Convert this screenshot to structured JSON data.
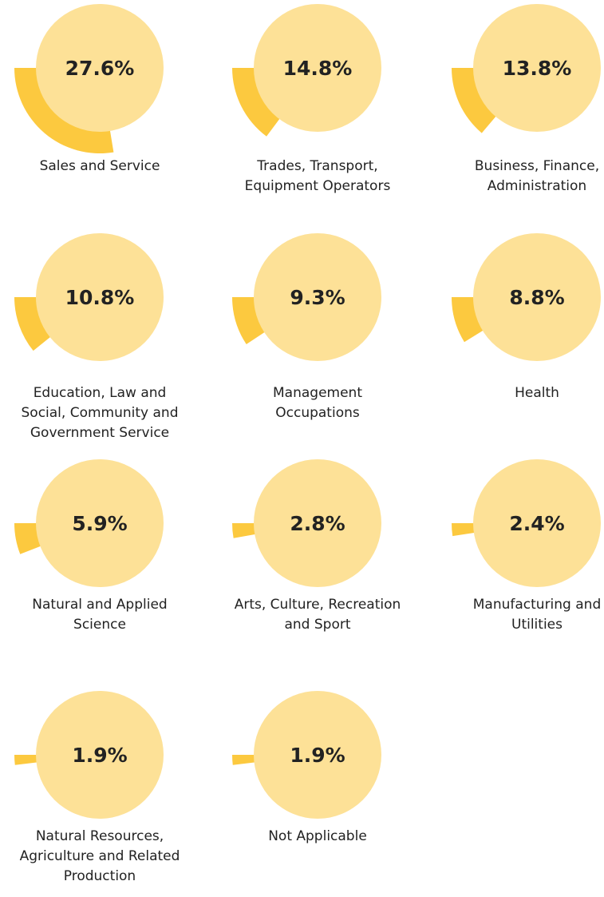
{
  "chart_data": [
    {
      "type": "pie",
      "categories": [
        "Sales and Service"
      ],
      "values": [
        27.6
      ],
      "value_labels": [
        "27.6%"
      ],
      "color": "#fcc93f"
    },
    {
      "type": "pie",
      "categories": [
        "Trades, Transport, Equipment Operators"
      ],
      "values": [
        14.8
      ],
      "value_labels": [
        "14.8%"
      ],
      "color": "#fcc93f"
    },
    {
      "type": "pie",
      "categories": [
        "Business, Finance, Administration"
      ],
      "values": [
        13.8
      ],
      "value_labels": [
        "13.8%"
      ],
      "color": "#fcc93f"
    },
    {
      "type": "pie",
      "categories": [
        "Education, Law and Social, Community and Government Service"
      ],
      "values": [
        10.8
      ],
      "value_labels": [
        "10.8%"
      ],
      "color": "#fcc93f"
    },
    {
      "type": "pie",
      "categories": [
        "Management Occupations"
      ],
      "values": [
        9.3
      ],
      "value_labels": [
        "9.3%"
      ],
      "color": "#fcc93f"
    },
    {
      "type": "pie",
      "categories": [
        "Health"
      ],
      "values": [
        8.8
      ],
      "value_labels": [
        "8.8%"
      ],
      "color": "#fcc93f"
    },
    {
      "type": "pie",
      "categories": [
        "Natural and Applied Science"
      ],
      "values": [
        5.9
      ],
      "value_labels": [
        "5.9%"
      ],
      "color": "#fcc93f"
    },
    {
      "type": "pie",
      "categories": [
        "Arts, Culture, Recreation and Sport"
      ],
      "values": [
        2.8
      ],
      "value_labels": [
        "2.8%"
      ],
      "color": "#fcc93f"
    },
    {
      "type": "pie",
      "categories": [
        "Manufacturing and Utilities"
      ],
      "values": [
        2.4
      ],
      "value_labels": [
        "2.4%"
      ],
      "color": "#fcc93f"
    },
    {
      "type": "pie",
      "categories": [
        "Natural Resources, Agriculture and Related Production"
      ],
      "values": [
        1.9
      ],
      "value_labels": [
        "1.9%"
      ],
      "color": "#fcc93f"
    },
    {
      "type": "pie",
      "categories": [
        "Not Applicable"
      ],
      "values": [
        1.9
      ],
      "value_labels": [
        "1.9%"
      ],
      "color": "#fcc93f"
    }
  ]
}
